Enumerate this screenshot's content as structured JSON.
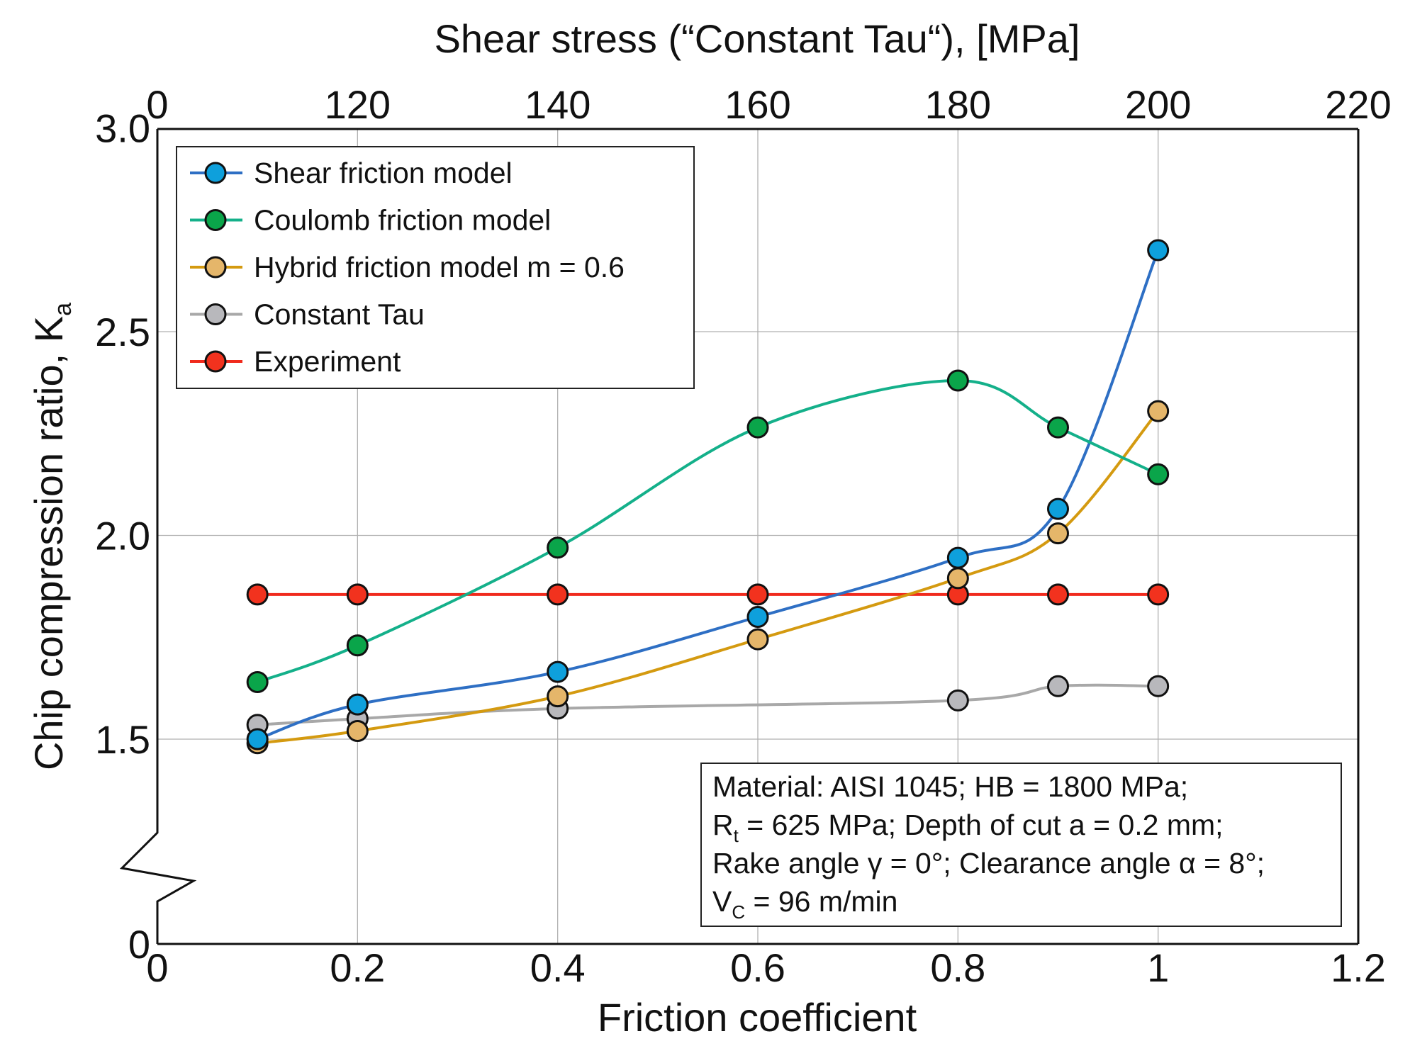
{
  "chart_data": {
    "type": "line",
    "title": "",
    "top_xlabel": "Shear stress (“Constant Tau“), [MPa]",
    "xlabel": "Friction coefficient",
    "ylabel": "Chip compression ratio, K",
    "ylabel_sub": "a",
    "xlim": [
      0,
      1.2
    ],
    "ylim": [
      0,
      3.0
    ],
    "y_axis_break": [
      0,
      1.3
    ],
    "x_ticks": [
      "0",
      "0.2",
      "0.4",
      "0.6",
      "0.8",
      "1",
      "1.2"
    ],
    "x_tick_values": [
      0,
      0.2,
      0.4,
      0.6,
      0.8,
      1.0,
      1.2
    ],
    "top_x_ticks": [
      "0",
      "120",
      "140",
      "160",
      "180",
      "200",
      "220"
    ],
    "y_ticks": [
      "0",
      "1.5",
      "2.0",
      "2.5",
      "3.0"
    ],
    "y_tick_values": [
      0,
      1.5,
      2.0,
      2.5,
      3.0
    ],
    "grid": true,
    "legend_position": "top-left",
    "series": [
      {
        "name": "Shear friction model",
        "line_color": "#2e6fc4",
        "marker_color": "#0ea0dc",
        "x": [
          0.1,
          0.2,
          0.4,
          0.6,
          0.8,
          0.9,
          1.0
        ],
        "y": [
          1.5,
          1.585,
          1.665,
          1.8,
          1.945,
          2.065,
          2.7
        ]
      },
      {
        "name": "Coulomb friction model",
        "line_color": "#14b08a",
        "marker_color": "#0aa54a",
        "x": [
          0.1,
          0.2,
          0.4,
          0.6,
          0.8,
          0.9,
          1.0
        ],
        "y": [
          1.64,
          1.73,
          1.97,
          2.265,
          2.38,
          2.265,
          2.15
        ]
      },
      {
        "name": "Hybrid friction model  m = 0.6",
        "line_color": "#d49a10",
        "marker_color": "#e5b66a",
        "x": [
          0.1,
          0.2,
          0.4,
          0.6,
          0.8,
          0.9,
          1.0
        ],
        "y": [
          1.49,
          1.52,
          1.605,
          1.745,
          1.895,
          2.005,
          2.305
        ]
      },
      {
        "name": "Constant Tau",
        "line_color": "#a8a8a8",
        "marker_color": "#b8b8bc",
        "x": [
          0.1,
          0.2,
          0.4,
          0.8,
          0.9,
          1.0
        ],
        "y": [
          1.535,
          1.55,
          1.575,
          1.595,
          1.63,
          1.63
        ]
      },
      {
        "name": "Experiment",
        "line_color": "#f02a1c",
        "marker_color": "#f2321e",
        "x": [
          0.1,
          0.2,
          0.4,
          0.6,
          0.8,
          0.9,
          1.0
        ],
        "y": [
          1.855,
          1.855,
          1.855,
          1.855,
          1.855,
          1.855,
          1.855
        ]
      }
    ],
    "annotation": [
      {
        "main": "Material: AISI 1045; HB = 1800 MPa;",
        "sub": "",
        "rest": ""
      },
      {
        "main": "R",
        "sub": "t",
        "rest": " = 625 MPa; Depth of cut a = 0.2 mm;"
      },
      {
        "main": "Rake angle γ = 0°; Clearance angle α = 8°;",
        "sub": "",
        "rest": ""
      },
      {
        "main": "V",
        "sub": "C",
        "rest": " = 96 m/min"
      }
    ]
  }
}
